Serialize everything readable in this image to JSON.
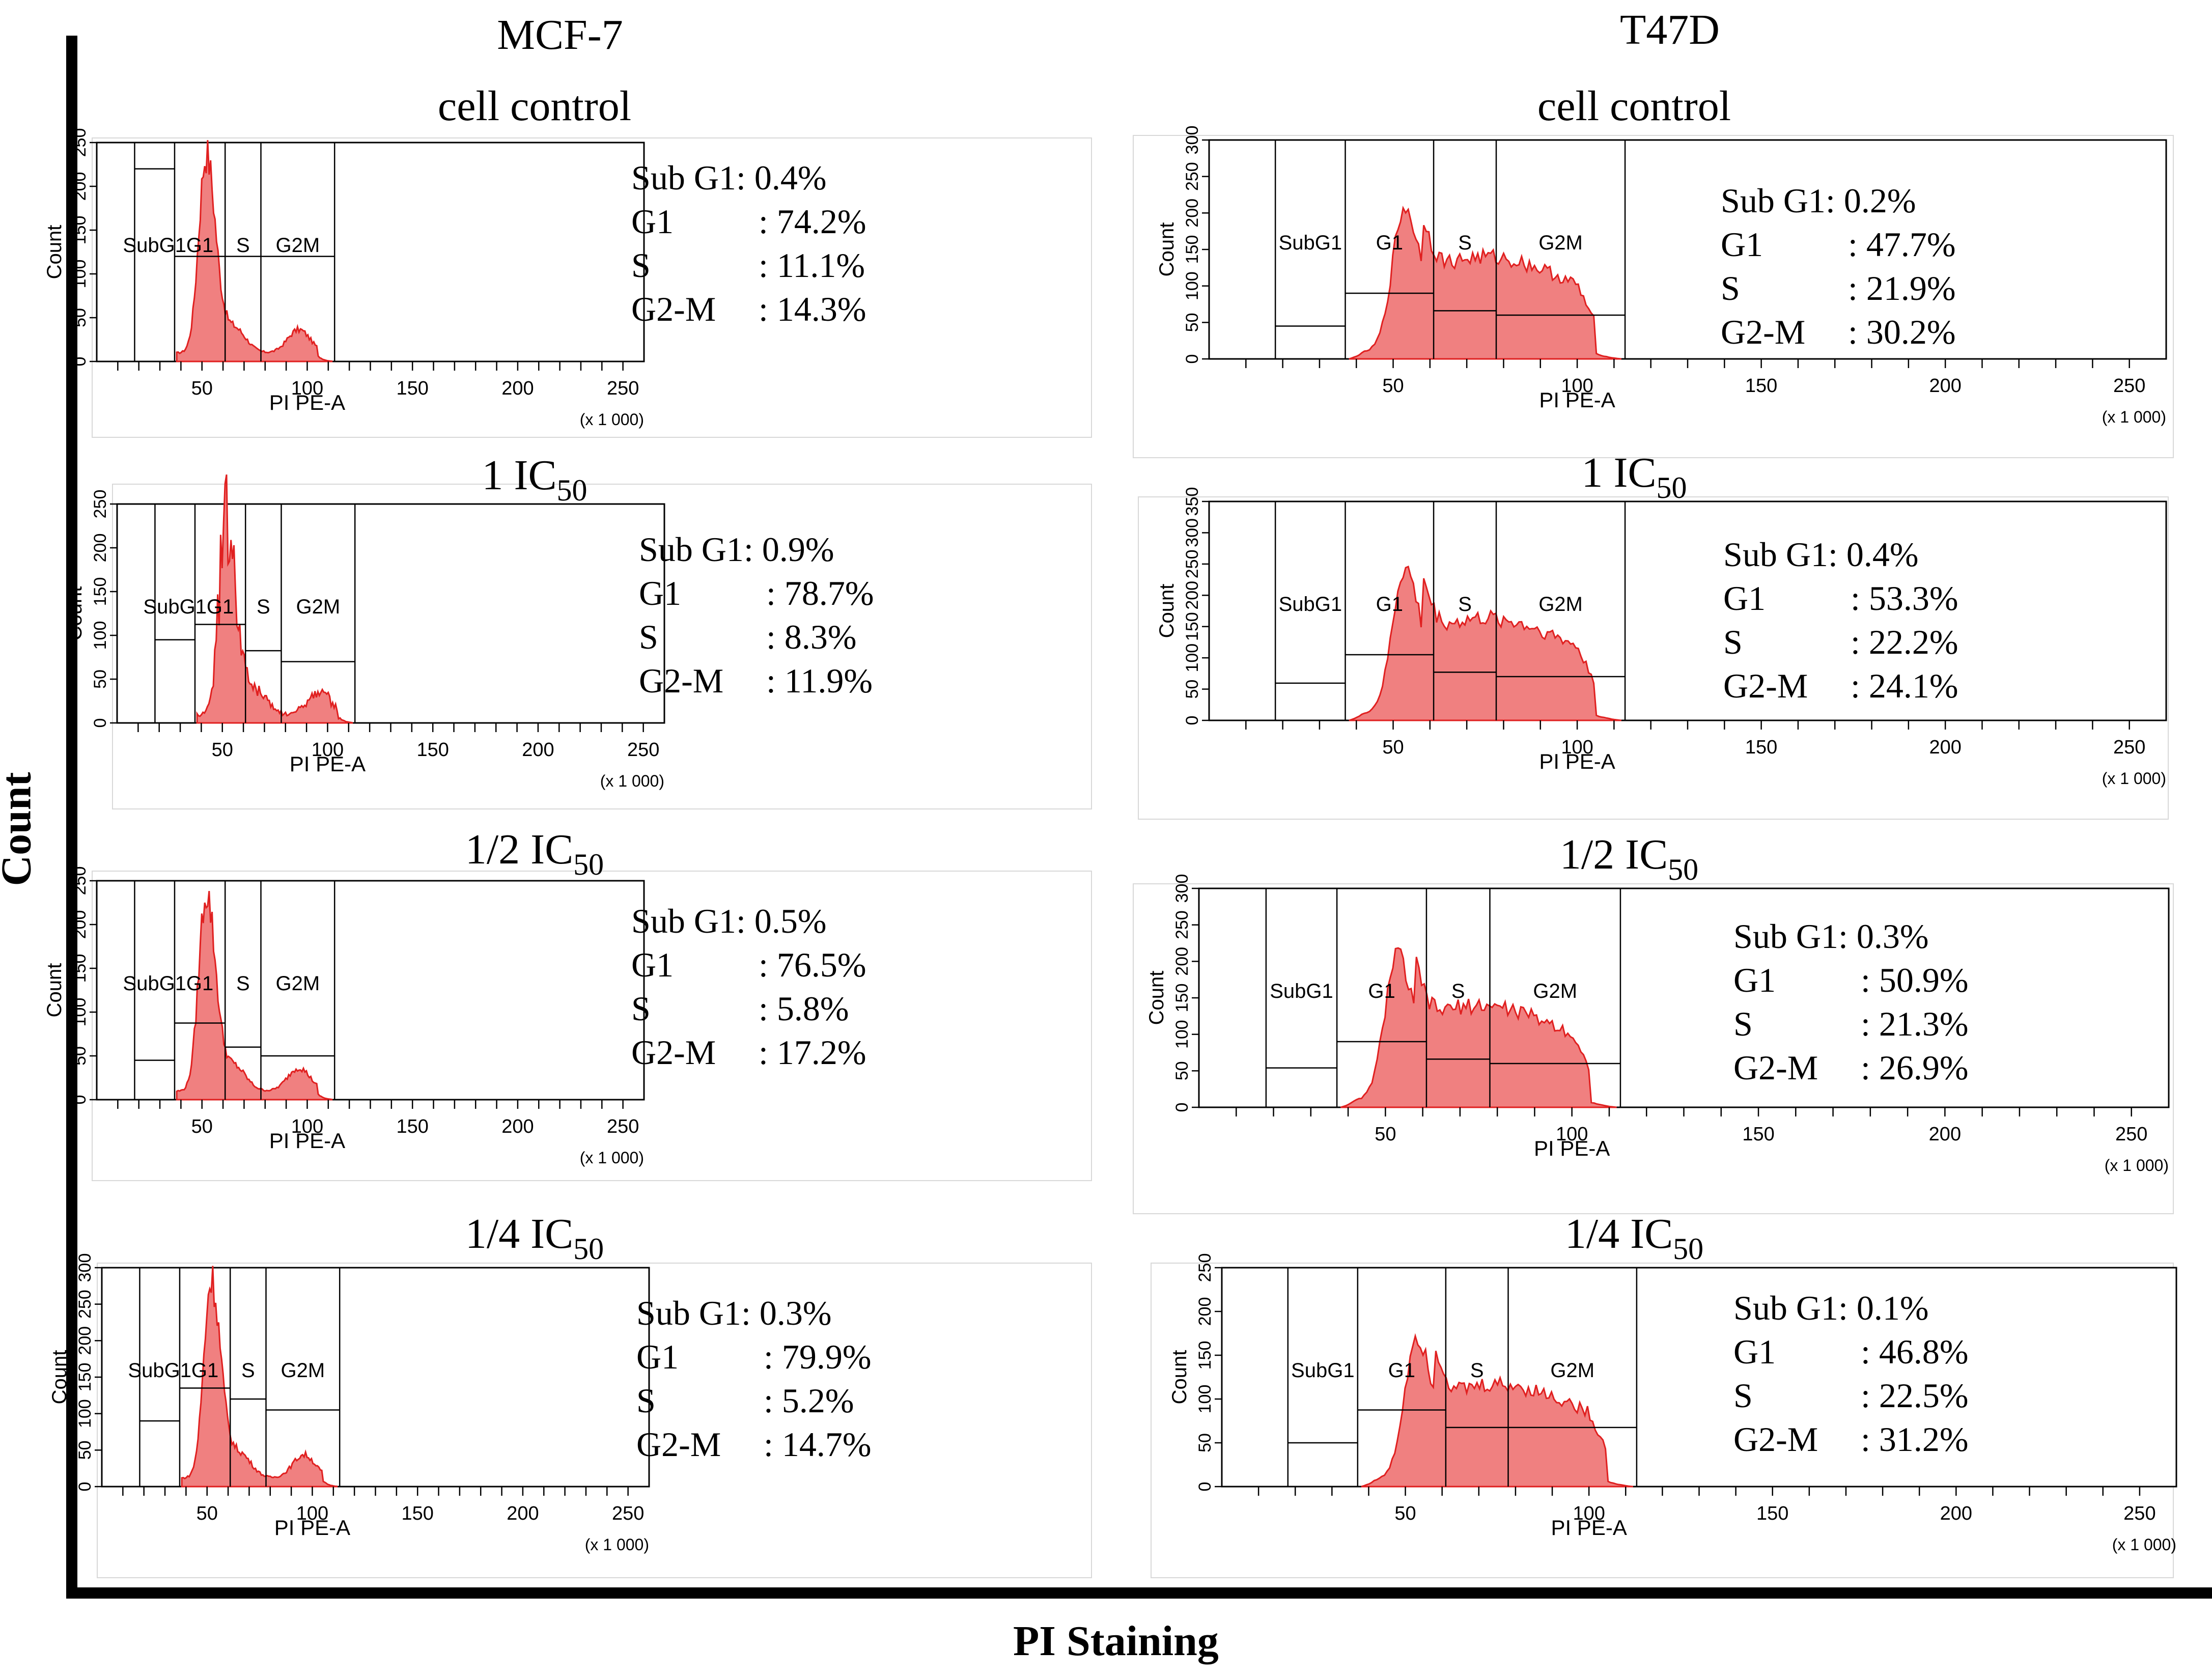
{
  "figure": {
    "y_axis_title": "Count",
    "x_axis_title": "PI Staining",
    "columns": [
      {
        "title": "MCF-7"
      },
      {
        "title": "T47D"
      }
    ]
  },
  "colors": {
    "histogram_fill": "#f08080",
    "histogram_stroke": "#e02020",
    "axis": "#000000"
  },
  "chart_data": [
    {
      "type": "histogram",
      "cell_line": "MCF-7",
      "condition": "cell control",
      "condition_sub": "",
      "xlabel": "PI PE-A",
      "x_scale_note": "(x 1 000)",
      "ylabel": "Count",
      "x_ticks": [
        "50",
        "100",
        "150",
        "200",
        "250"
      ],
      "xlim": [
        0,
        260
      ],
      "y_ticks": [
        "0",
        "50",
        "100",
        "150",
        "200",
        "250"
      ],
      "ylim": [
        0,
        250
      ],
      "gate_labels": [
        "SubG1",
        "G1",
        "S",
        "G2M"
      ],
      "stats": {
        "sub_g1": "0.4%",
        "g1": "74.2%",
        "s": "11.1%",
        "g2m": "14.3%"
      }
    },
    {
      "type": "histogram",
      "cell_line": "MCF-7",
      "condition": "1 IC",
      "condition_sub": "50",
      "xlabel": "PI PE-A",
      "x_scale_note": "(x 1 000)",
      "ylabel": "Count",
      "x_ticks": [
        "50",
        "100",
        "150",
        "200",
        "250"
      ],
      "xlim": [
        0,
        260
      ],
      "y_ticks": [
        "0",
        "50",
        "100",
        "150",
        "200",
        "250"
      ],
      "ylim": [
        0,
        250
      ],
      "gate_labels": [
        "SubG1",
        "G1",
        "S",
        "G2M"
      ],
      "stats": {
        "sub_g1": "0.9%",
        "g1": "78.7%",
        "s": "8.3%",
        "g2m": "11.9%"
      }
    },
    {
      "type": "histogram",
      "cell_line": "MCF-7",
      "condition": "1/2 IC",
      "condition_sub": "50",
      "xlabel": "PI PE-A",
      "x_scale_note": "(x 1 000)",
      "ylabel": "Count",
      "x_ticks": [
        "50",
        "100",
        "150",
        "200",
        "250"
      ],
      "xlim": [
        0,
        260
      ],
      "y_ticks": [
        "0",
        "50",
        "100",
        "150",
        "200",
        "250"
      ],
      "ylim": [
        0,
        250
      ],
      "gate_labels": [
        "SubG1",
        "G1",
        "S",
        "G2M"
      ],
      "stats": {
        "sub_g1": "0.5%",
        "g1": "76.5%",
        "s": "5.8%",
        "g2m": "17.2%"
      }
    },
    {
      "type": "histogram",
      "cell_line": "MCF-7",
      "condition": "1/4 IC",
      "condition_sub": "50",
      "xlabel": "PI PE-A",
      "x_scale_note": "(x 1 000)",
      "ylabel": "Count",
      "x_ticks": [
        "50",
        "100",
        "150",
        "200",
        "250"
      ],
      "xlim": [
        0,
        260
      ],
      "y_ticks": [
        "0",
        "50",
        "100",
        "150",
        "200",
        "250",
        "300"
      ],
      "ylim": [
        0,
        300
      ],
      "gate_labels": [
        "SubG1",
        "G1",
        "S",
        "G2M"
      ],
      "stats": {
        "sub_g1": "0.3%",
        "g1": "79.9%",
        "s": "5.2%",
        "g2m": "14.7%"
      }
    },
    {
      "type": "histogram",
      "cell_line": "T47D",
      "condition": "cell control",
      "condition_sub": "",
      "xlabel": "PI PE-A",
      "x_scale_note": "(x 1 000)",
      "ylabel": "Count",
      "x_ticks": [
        "50",
        "100",
        "150",
        "200",
        "250"
      ],
      "xlim": [
        0,
        260
      ],
      "y_ticks": [
        "0",
        "50",
        "100",
        "150",
        "200",
        "250",
        "300"
      ],
      "ylim": [
        0,
        300
      ],
      "gate_labels": [
        "SubG1",
        "G1",
        "S",
        "G2M"
      ],
      "stats": {
        "sub_g1": "0.2%",
        "g1": "47.7%",
        "s": "21.9%",
        "g2m": "30.2%"
      }
    },
    {
      "type": "histogram",
      "cell_line": "T47D",
      "condition": "1 IC",
      "condition_sub": "50",
      "xlabel": "PI PE-A",
      "x_scale_note": "(x 1 000)",
      "ylabel": "Count",
      "x_ticks": [
        "50",
        "100",
        "150",
        "200",
        "250"
      ],
      "xlim": [
        0,
        260
      ],
      "y_ticks": [
        "0",
        "50",
        "100",
        "150",
        "200",
        "250",
        "300",
        "350"
      ],
      "ylim": [
        0,
        350
      ],
      "gate_labels": [
        "SubG1",
        "G1",
        "S",
        "G2M"
      ],
      "stats": {
        "sub_g1": "0.4%",
        "g1": "53.3%",
        "s": "22.2%",
        "g2m": "24.1%"
      }
    },
    {
      "type": "histogram",
      "cell_line": "T47D",
      "condition": "1/2 IC",
      "condition_sub": "50",
      "xlabel": "PI PE-A",
      "x_scale_note": "(x 1 000)",
      "ylabel": "Count",
      "x_ticks": [
        "50",
        "100",
        "150",
        "200",
        "250"
      ],
      "xlim": [
        0,
        260
      ],
      "y_ticks": [
        "0",
        "50",
        "100",
        "150",
        "200",
        "250",
        "300"
      ],
      "ylim": [
        0,
        300
      ],
      "gate_labels": [
        "SubG1",
        "G1",
        "S",
        "G2M"
      ],
      "stats": {
        "sub_g1": "0.3%",
        "g1": "50.9%",
        "s": "21.3%",
        "g2m": "26.9%"
      }
    },
    {
      "type": "histogram",
      "cell_line": "T47D",
      "condition": "1/4 IC",
      "condition_sub": "50",
      "xlabel": "PI PE-A",
      "x_scale_note": "(x 1 000)",
      "ylabel": "Count",
      "x_ticks": [
        "50",
        "100",
        "150",
        "200",
        "250"
      ],
      "xlim": [
        0,
        260
      ],
      "y_ticks": [
        "0",
        "50",
        "100",
        "150",
        "200",
        "250"
      ],
      "ylim": [
        0,
        250
      ],
      "gate_labels": [
        "SubG1",
        "G1",
        "S",
        "G2M"
      ],
      "stats": {
        "sub_g1": "0.1%",
        "g1": "46.8%",
        "s": "22.5%",
        "g2m": "31.2%"
      }
    }
  ],
  "stat_labels": {
    "sub_g1": "Sub G1",
    "g1": "G1",
    "s": "S",
    "g2m": "G2-M"
  }
}
